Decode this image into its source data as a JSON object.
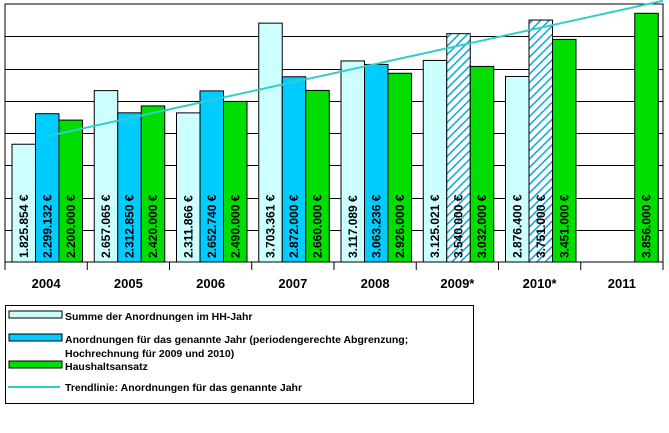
{
  "chart_data": {
    "type": "bar",
    "categories": [
      "2004",
      "2005",
      "2006",
      "2007",
      "2008",
      "2009*",
      "2010*",
      "2011"
    ],
    "ylim": [
      0,
      4000000
    ],
    "grid": true,
    "legend_position": "bottom",
    "series": [
      {
        "name": "Summe der Anordnungen im HH-Jahr",
        "color": "#ccffff",
        "values": [
          1825854,
          2657065,
          2311866,
          3703361,
          3117089,
          3125021,
          2876400,
          null
        ],
        "labels": [
          "1.825.854 €",
          "2.657.065 €",
          "2.311.866 €",
          "3.703.361 €",
          "3.117.089 €",
          "3.125.021 €",
          "2.876.400 €",
          ""
        ]
      },
      {
        "name": "Anordnungen für das genannte Jahr (periodengerechte Abgrenzung; Hochrechnung für 2009 und 2010)",
        "color": "#00ccff",
        "hatched_categories": [
          "2009*",
          "2010*"
        ],
        "values": [
          2299132,
          2312850,
          2652740,
          2872000,
          3063236,
          3540000,
          3751000,
          null
        ],
        "labels": [
          "2.299.132 €",
          "2.312.850 €",
          "2.652.740 €",
          "2.872.000 €",
          "3.063.236 €",
          "3.540.000 €",
          "3.751.000 €",
          ""
        ]
      },
      {
        "name": "Haushaltsansatz",
        "color": "#00dd00",
        "values": [
          2200000,
          2420000,
          2490000,
          2660000,
          2926000,
          3032000,
          3451000,
          3856000
        ],
        "labels": [
          "2.200.000 €",
          "2.420.000 €",
          "2.490.000 €",
          "2.660.000 €",
          "2.926.000 €",
          "3.032.000 €",
          "3.451.000 €",
          "3.856.000 €"
        ]
      }
    ],
    "trendline": {
      "name": "Trendlinie: Anordnungen für das genannte Jahr",
      "color": "#33cccc",
      "start_value": 1950000,
      "end_value": 4050000
    },
    "legend": {
      "items": [
        {
          "label_lines": [
            "Summe der Anordnungen im HH-Jahr"
          ]
        },
        {
          "label_lines": [
            "Anordnungen für das genannte Jahr (periodengerechte Abgrenzung;",
            "Hochrechnung für 2009 und 2010)"
          ]
        },
        {
          "label_lines": [
            "Haushaltsansatz"
          ]
        },
        {
          "label_lines": [
            "Trendlinie: Anordnungen für das genannte Jahr"
          ]
        }
      ]
    }
  }
}
